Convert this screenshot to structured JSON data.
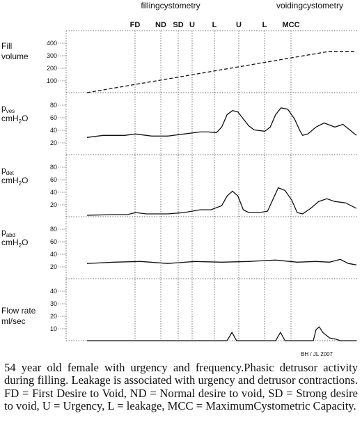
{
  "chart_data": {
    "type": "line",
    "phase_labels": [
      "fillingcystometry",
      "voidingcystometry"
    ],
    "events": [
      "FD",
      "ND",
      "SD",
      "U",
      "L",
      "U",
      "L",
      "MCC"
    ],
    "credit": "BH / JL 2007",
    "panels": [
      {
        "id": "fill-volume",
        "label_lines": [
          "Fill",
          "volume"
        ],
        "ticks": [
          "400",
          "300",
          "200",
          "100"
        ],
        "ylim": [
          0,
          450
        ],
        "style": "dashed",
        "series": [
          [
            0,
            0
          ],
          [
            900,
            300
          ],
          [
            1000,
            300
          ]
        ]
      },
      {
        "id": "pves",
        "label_lines": [
          "pves",
          "cmH2O"
        ],
        "ticks": [
          "80",
          "60",
          "40",
          "20"
        ],
        "ylim": [
          0,
          90
        ],
        "series": [
          [
            0,
            25
          ],
          [
            60,
            28
          ],
          [
            140,
            28
          ],
          [
            180,
            30
          ],
          [
            240,
            27
          ],
          [
            300,
            27
          ],
          [
            360,
            30
          ],
          [
            420,
            33
          ],
          [
            450,
            33
          ],
          [
            480,
            32
          ],
          [
            500,
            40
          ],
          [
            520,
            58
          ],
          [
            540,
            64
          ],
          [
            560,
            62
          ],
          [
            580,
            52
          ],
          [
            600,
            42
          ],
          [
            620,
            36
          ],
          [
            660,
            34
          ],
          [
            680,
            40
          ],
          [
            700,
            58
          ],
          [
            720,
            68
          ],
          [
            745,
            66
          ],
          [
            770,
            52
          ],
          [
            790,
            35
          ],
          [
            800,
            28
          ],
          [
            820,
            30
          ],
          [
            850,
            40
          ],
          [
            880,
            46
          ],
          [
            920,
            40
          ],
          [
            950,
            44
          ],
          [
            975,
            36
          ],
          [
            1000,
            28
          ]
        ]
      },
      {
        "id": "pdet",
        "label_lines": [
          "pdet",
          "cmH2O"
        ],
        "ticks": [
          "80",
          "60",
          "40",
          "20"
        ],
        "ylim": [
          0,
          90
        ],
        "series": [
          [
            0,
            2
          ],
          [
            100,
            3
          ],
          [
            150,
            3
          ],
          [
            180,
            6
          ],
          [
            220,
            4
          ],
          [
            300,
            4
          ],
          [
            360,
            6
          ],
          [
            420,
            10
          ],
          [
            460,
            10
          ],
          [
            500,
            16
          ],
          [
            520,
            30
          ],
          [
            540,
            37
          ],
          [
            560,
            30
          ],
          [
            580,
            10
          ],
          [
            600,
            6
          ],
          [
            640,
            6
          ],
          [
            670,
            8
          ],
          [
            690,
            25
          ],
          [
            710,
            42
          ],
          [
            735,
            38
          ],
          [
            760,
            24
          ],
          [
            780,
            6
          ],
          [
            800,
            4
          ],
          [
            830,
            12
          ],
          [
            860,
            22
          ],
          [
            890,
            26
          ],
          [
            920,
            22
          ],
          [
            960,
            20
          ],
          [
            1000,
            12
          ]
        ]
      },
      {
        "id": "pabd",
        "label_lines": [
          "pabd",
          "cmH2O"
        ],
        "ticks": [
          "80",
          "60",
          "40",
          "20"
        ],
        "ylim": [
          0,
          90
        ],
        "series": [
          [
            0,
            22
          ],
          [
            100,
            24
          ],
          [
            200,
            25
          ],
          [
            300,
            22
          ],
          [
            400,
            25
          ],
          [
            500,
            24
          ],
          [
            600,
            25
          ],
          [
            700,
            27
          ],
          [
            780,
            24
          ],
          [
            850,
            25
          ],
          [
            900,
            24
          ],
          [
            940,
            28
          ],
          [
            970,
            22
          ],
          [
            1000,
            20
          ]
        ]
      },
      {
        "id": "flow-rate",
        "label_lines": [
          "Flow rate",
          "ml/sec"
        ],
        "ticks": [
          "40",
          "30",
          "20",
          "10"
        ],
        "ylim": [
          0,
          45
        ],
        "series": [
          [
            0,
            0
          ],
          [
            520,
            0
          ],
          [
            538,
            6
          ],
          [
            555,
            0
          ],
          [
            700,
            0
          ],
          [
            718,
            6
          ],
          [
            735,
            0
          ],
          [
            840,
            0
          ],
          [
            850,
            8
          ],
          [
            862,
            10
          ],
          [
            875,
            6
          ],
          [
            900,
            2
          ],
          [
            925,
            1
          ],
          [
            940,
            0
          ],
          [
            1000,
            0
          ]
        ]
      }
    ]
  },
  "caption": "54 year old female with urgency and frequency.Phasic detrusor activity during filling. Leakage is associated with urgency and detrusor contractions. FD = First Desire to Void, ND = Normal desire to void, SD = Strong desire to void, U = Urgency, L = leakage, MCC = MaximumCystometric Capacity."
}
